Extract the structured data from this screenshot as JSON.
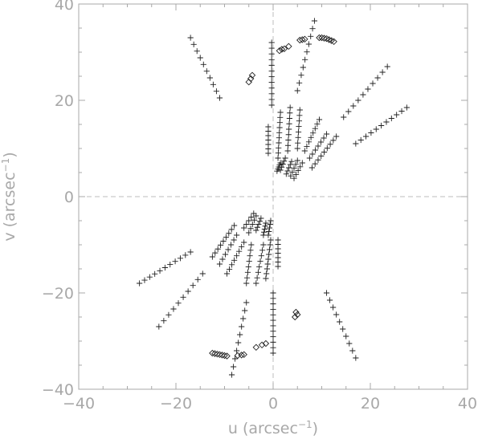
{
  "chart_data": {
    "type": "scatter",
    "title": "",
    "xlabel": "u (arcsec",
    "xlabel_sup": "−1",
    "xlabel_close": ")",
    "ylabel": "v (arcsec",
    "ylabel_sup": "−1",
    "ylabel_close": ")",
    "xlim": [
      -40,
      40
    ],
    "ylim": [
      -40,
      40
    ],
    "xticks": [
      -40,
      -20,
      0,
      20,
      40
    ],
    "yticks": [
      -40,
      -20,
      0,
      20,
      40
    ],
    "xtick_labels": [
      "−40",
      "−20",
      "0",
      "20",
      "40"
    ],
    "ytick_labels": [
      "−40",
      "−20",
      "0",
      "20",
      "40"
    ],
    "zero_lines": true,
    "grid": false,
    "colors": {
      "axis": "#a8a8a8",
      "marker": "#222222",
      "zero_line": "#bdbdbd"
    },
    "series": [
      {
        "marker": "plus",
        "tracks": [
          {
            "start": [
              -17,
              33
            ],
            "end": [
              -11,
              20.5
            ],
            "n": 10
          },
          {
            "start": [
              -0.3,
              32
            ],
            "end": [
              -0.3,
              19
            ],
            "n": 12
          },
          {
            "start": [
              8.5,
              36.5
            ],
            "end": [
              5,
              22
            ],
            "n": 10
          },
          {
            "start": [
              23.5,
              27
            ],
            "end": [
              14.5,
              16.5
            ],
            "n": 10
          },
          {
            "start": [
              27.5,
              18.5
            ],
            "end": [
              17,
              11
            ],
            "n": 11
          },
          {
            "start": [
              -1,
              14.5
            ],
            "end": [
              -1,
              9
            ],
            "n": 7
          },
          {
            "start": [
              1.5,
              17.5
            ],
            "end": [
              1,
              8
            ],
            "n": 10
          },
          {
            "start": [
              3.5,
              18.5
            ],
            "end": [
              3,
              9.5
            ],
            "n": 9
          },
          {
            "start": [
              5.5,
              18
            ],
            "end": [
              5,
              10
            ],
            "n": 8
          },
          {
            "start": [
              9.5,
              16
            ],
            "end": [
              6.5,
              9.5
            ],
            "n": 8
          },
          {
            "start": [
              11,
              13
            ],
            "end": [
              7.5,
              8
            ],
            "n": 7
          },
          {
            "start": [
              13,
              12.5
            ],
            "end": [
              8,
              6
            ],
            "n": 9
          },
          {
            "start": [
              1.5,
              7
            ],
            "end": [
              0.8,
              5.3
            ],
            "n": 5
          },
          {
            "start": [
              2.5,
              8
            ],
            "end": [
              1.5,
              5.5
            ],
            "n": 5
          },
          {
            "start": [
              3.8,
              7.3
            ],
            "end": [
              2.7,
              4.7
            ],
            "n": 5
          },
          {
            "start": [
              5,
              7.5
            ],
            "end": [
              3.6,
              4.3
            ],
            "n": 5
          },
          {
            "start": [
              6,
              7
            ],
            "end": [
              4.3,
              3.8
            ],
            "n": 5
          },
          {
            "start": [
              17,
              -33.5
            ],
            "end": [
              11,
              -20
            ],
            "n": 10
          },
          {
            "start": [
              0,
              -32.5
            ],
            "end": [
              0,
              -20
            ],
            "n": 12
          },
          {
            "start": [
              -8.5,
              -37
            ],
            "end": [
              -5.5,
              -22
            ],
            "n": 10
          },
          {
            "start": [
              -23.5,
              -27
            ],
            "end": [
              -14.5,
              -16
            ],
            "n": 10
          },
          {
            "start": [
              -27.5,
              -18
            ],
            "end": [
              -17,
              -11.5
            ],
            "n": 11
          },
          {
            "start": [
              1,
              -14.5
            ],
            "end": [
              1,
              -9
            ],
            "n": 7
          },
          {
            "start": [
              -1.5,
              -17
            ],
            "end": [
              -0.5,
              -9
            ],
            "n": 9
          },
          {
            "start": [
              -3.5,
              -18
            ],
            "end": [
              -2,
              -10
            ],
            "n": 8
          },
          {
            "start": [
              -5.5,
              -18
            ],
            "end": [
              -4.5,
              -10
            ],
            "n": 8
          },
          {
            "start": [
              -9.5,
              -16
            ],
            "end": [
              -6,
              -9.5
            ],
            "n": 8
          },
          {
            "start": [
              -11,
              -14
            ],
            "end": [
              -7.5,
              -8
            ],
            "n": 7
          },
          {
            "start": [
              -12.5,
              -12.5
            ],
            "end": [
              -8,
              -6
            ],
            "n": 9
          },
          {
            "start": [
              -1,
              -8
            ],
            "end": [
              -0.5,
              -5
            ],
            "n": 5
          },
          {
            "start": [
              -2,
              -8
            ],
            "end": [
              -1.5,
              -5.5
            ],
            "n": 5
          },
          {
            "start": [
              -3.5,
              -7
            ],
            "end": [
              -2.5,
              -4.5
            ],
            "n": 5
          },
          {
            "start": [
              -5,
              -7.5
            ],
            "end": [
              -3.5,
              -4
            ],
            "n": 5
          },
          {
            "start": [
              -6,
              -6.5
            ],
            "end": [
              -4,
              -3.5
            ],
            "n": 5
          }
        ]
      },
      {
        "marker": "diamond",
        "points": [
          [
            -5,
            23.8
          ],
          [
            -4.6,
            24.5
          ],
          [
            -4.3,
            25.2
          ],
          [
            1.3,
            30.3
          ],
          [
            1.8,
            30.6
          ],
          [
            2.3,
            30.7
          ],
          [
            3.2,
            31.2
          ],
          [
            5.5,
            32.5
          ],
          [
            6,
            32.6
          ],
          [
            6.5,
            32.7
          ],
          [
            9.5,
            33
          ],
          [
            10,
            33
          ],
          [
            10.5,
            32.9
          ],
          [
            11,
            32.8
          ],
          [
            11.5,
            32.6
          ],
          [
            12,
            32.4
          ],
          [
            12.5,
            32.2
          ],
          [
            4.5,
            -25
          ],
          [
            5,
            -24.5
          ],
          [
            4.7,
            -24
          ],
          [
            -1.5,
            -30.5
          ],
          [
            -2.3,
            -30.8
          ],
          [
            -3.5,
            -31.3
          ],
          [
            -6,
            -32.8
          ],
          [
            -6.5,
            -32.9
          ],
          [
            -7.3,
            -33
          ],
          [
            -12.5,
            -32.5
          ],
          [
            -12,
            -32.6
          ],
          [
            -11.5,
            -32.7
          ],
          [
            -11,
            -32.8
          ],
          [
            -10.5,
            -32.9
          ],
          [
            -10,
            -33
          ],
          [
            -9.5,
            -33.1
          ]
        ]
      }
    ]
  }
}
